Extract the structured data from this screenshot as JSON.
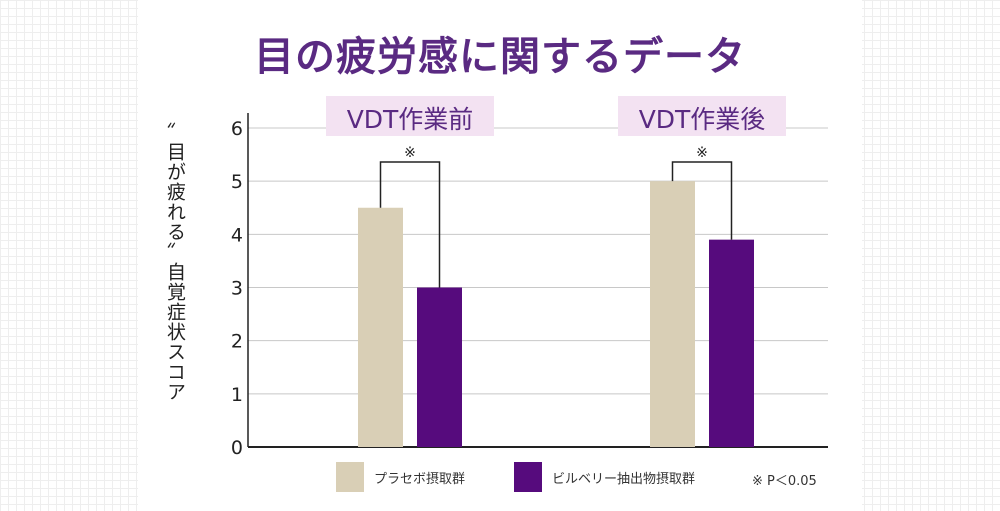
{
  "title": "目の疲労感に関するデータ",
  "y_label": "〞目が疲れる〞自覚症状スコア",
  "legend": [
    {
      "label": "プラセボ摂取群",
      "color": "#d9cfb6"
    },
    {
      "label": "ビルベリー抽出物摂取群",
      "color": "#560b7d"
    }
  ],
  "footnote": "※ P＜0.05",
  "colors": {
    "accent": "#5a2a82",
    "group_tag_bg": "#f3e2f2",
    "grid": "#c8c8c8"
  },
  "chart_data": {
    "type": "bar",
    "categories": [
      "VDT作業前",
      "VDT作業後"
    ],
    "series": [
      {
        "name": "プラセボ摂取群",
        "values": [
          4.5,
          5.0
        ]
      },
      {
        "name": "ビルベリー抽出物摂取群",
        "values": [
          3.0,
          3.9
        ]
      }
    ],
    "ylim": [
      0,
      6
    ],
    "yticks": [
      0,
      1,
      2,
      3,
      4,
      5,
      6
    ],
    "grid": true,
    "legend_position": "bottom",
    "significance": [
      {
        "category": "VDT作業前",
        "mark": "※"
      },
      {
        "category": "VDT作業後",
        "mark": "※"
      }
    ]
  }
}
